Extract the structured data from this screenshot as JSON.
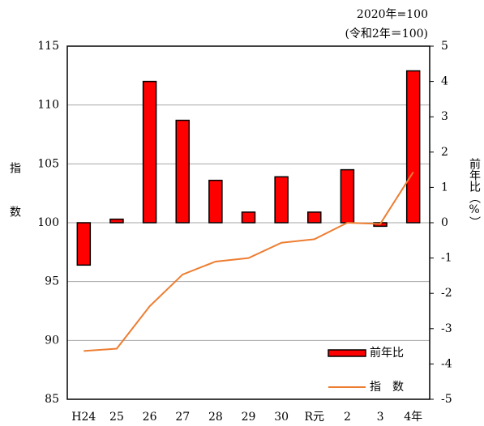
{
  "chart_data": {
    "type": "bar_line",
    "note_lines": [
      "2020年=100",
      "(令和2年＝100)"
    ],
    "ylabel": "指数",
    "y2label": "前年比（%）",
    "categories": [
      "H24",
      "25",
      "26",
      "27",
      "28",
      "29",
      "30",
      "R元",
      "2",
      "3",
      "4年"
    ],
    "series": [
      {
        "name": "前年比",
        "type": "bar",
        "axis": "y2",
        "color": "#ff0000",
        "values": [
          -1.2,
          0.1,
          4.0,
          2.9,
          1.2,
          0.3,
          1.3,
          0.3,
          1.5,
          -0.1,
          4.3
        ]
      },
      {
        "name": "指　数",
        "type": "line",
        "axis": "y",
        "color": "#ed7d31",
        "values": [
          89.1,
          89.3,
          92.9,
          95.6,
          96.7,
          97.0,
          98.3,
          98.6,
          100.0,
          99.9,
          104.3
        ]
      }
    ],
    "ylim": [
      85,
      115
    ],
    "yticks": [
      85,
      90,
      95,
      100,
      105,
      110,
      115
    ],
    "y2lim": [
      -5,
      5
    ],
    "y2ticks": [
      -5,
      -4,
      -3,
      -2,
      -1,
      0,
      1,
      2,
      3,
      4,
      5
    ],
    "grid": true
  }
}
